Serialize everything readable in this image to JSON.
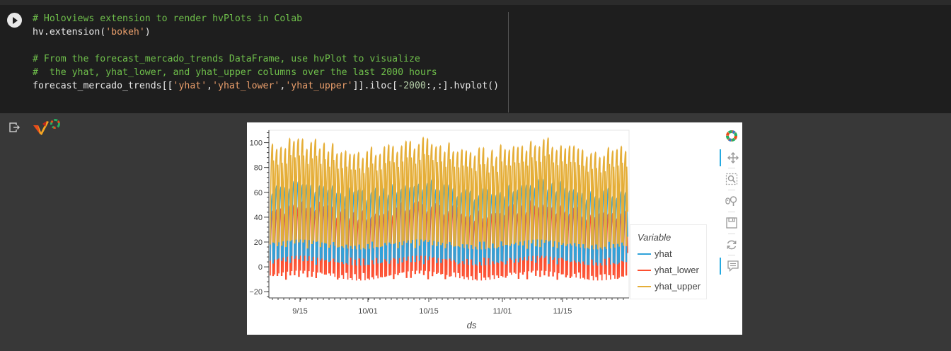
{
  "notebook": {
    "code_lines": [
      [
        {
          "t": "cmt",
          "v": "# Holoviews extension to render hvPlots in Colab"
        }
      ],
      [
        {
          "t": "",
          "v": "hv.extension("
        },
        {
          "t": "str",
          "v": "'bokeh'"
        },
        {
          "t": "",
          "v": ")"
        }
      ],
      [],
      [
        {
          "t": "cmt",
          "v": "# From the forecast_mercado_trends DataFrame, use hvPlot to visualize"
        }
      ],
      [
        {
          "t": "cmt",
          "v": "#  the yhat, yhat_lower, and yhat_upper columns over the last 2000 hours"
        }
      ],
      [
        {
          "t": "",
          "v": "forecast_mercado_trends[["
        },
        {
          "t": "str",
          "v": "'yhat'"
        },
        {
          "t": "",
          "v": ","
        },
        {
          "t": "str",
          "v": "'yhat_lower'"
        },
        {
          "t": "",
          "v": ","
        },
        {
          "t": "str",
          "v": "'yhat_upper'"
        },
        {
          "t": "",
          "v": "]].iloc["
        },
        {
          "t": "num",
          "v": "-2000"
        },
        {
          "t": "",
          "v": ":,:].hvplot()"
        }
      ]
    ]
  },
  "colors": {
    "yhat": "#30a2da",
    "yhat_lower": "#fc4f30",
    "yhat_upper": "#e5ae38",
    "toolbar_active": "#26aae1"
  },
  "icons": {
    "run": "play-circle-icon",
    "output": "output-redirect-icon",
    "holoviews": "holoviews-logo-icon",
    "bokeh": "bokeh-logo-icon",
    "pan": "pan-icon",
    "box_zoom": "box-zoom-icon",
    "wheel_zoom": "wheel-zoom-icon",
    "save": "save-icon",
    "reset": "reset-icon",
    "hover": "hover-icon"
  },
  "chart_data": {
    "type": "line",
    "x_ticks": [
      "9/15",
      "10/01",
      "10/15",
      "11/01",
      "11/15"
    ],
    "y_ticks": [
      100,
      80,
      60,
      40,
      20,
      0,
      -20
    ],
    "ylim": [
      -25,
      110
    ],
    "xlabel": "ds",
    "legend": {
      "title": "Variable",
      "position": "right"
    },
    "period": "daily cycles over 2000 hourly points",
    "series": [
      {
        "name": "yhat",
        "daily_min": 5,
        "daily_max": 62
      },
      {
        "name": "yhat_lower",
        "daily_min": -7,
        "daily_max": 45
      },
      {
        "name": "yhat_upper",
        "daily_min": 18,
        "daily_max": 95
      }
    ]
  }
}
